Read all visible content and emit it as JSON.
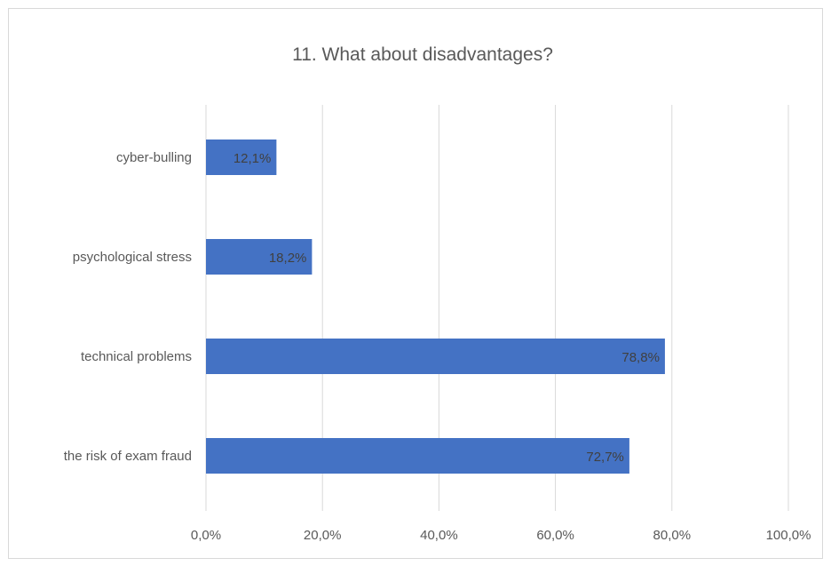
{
  "chart_data": {
    "type": "bar",
    "orientation": "horizontal",
    "title": "11. What about disadvantages?",
    "categories": [
      "cyber-bulling",
      "psychological stress",
      "technical problems",
      "the risk of exam fraud"
    ],
    "values": [
      12.1,
      18.2,
      78.8,
      72.7
    ],
    "data_labels": [
      "12,1%",
      "18,2%",
      "78,8%",
      "72,7%"
    ],
    "xlim": [
      0,
      100
    ],
    "x_ticks": [
      0,
      20,
      40,
      60,
      80,
      100
    ],
    "x_tick_labels": [
      "0,0%",
      "20,0%",
      "40,0%",
      "60,0%",
      "80,0%",
      "100,0%"
    ],
    "grid": "vertical",
    "legend": "none",
    "bar_color": "#4472c4",
    "gridline_color": "#d9d9d9"
  }
}
